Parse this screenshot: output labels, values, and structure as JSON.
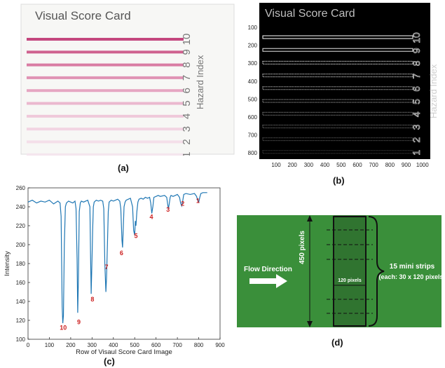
{
  "panel_a": {
    "caption": "(a)",
    "title": "Visual Score Card",
    "side_label": "Hazard Index",
    "indices": [
      "10",
      "9",
      "8",
      "7",
      "6",
      "5",
      "4",
      "3",
      "2",
      "1"
    ],
    "strip_colors": [
      "#c4477e",
      "#cf628f",
      "#d97ca3",
      "#e093b4",
      "#e6a6c2",
      "#ebb8cf",
      "#efc8da",
      "#f2d5e3",
      "#f4dfe9",
      "#f5e6ee"
    ]
  },
  "panel_b": {
    "caption": "(b)",
    "title": "Visual Score Card",
    "side_label": "Hazard Index",
    "indices": [
      "10",
      "9",
      "8",
      "7",
      "6",
      "5",
      "4",
      "3",
      "2",
      "1"
    ],
    "y_ticks": [
      "100",
      "200",
      "300",
      "400",
      "500",
      "600",
      "700",
      "800"
    ],
    "x_ticks": [
      "100",
      "200",
      "300",
      "400",
      "500",
      "600",
      "700",
      "800",
      "900",
      "1000"
    ]
  },
  "panel_c": {
    "caption": "(c)",
    "peak_label_color": "#cc1f1f",
    "line_color": "#1f77b4"
  },
  "panel_d": {
    "caption": "(d)",
    "background_color": "#3a8f3a",
    "flow_label": "Flow Direction",
    "height_label": "450 pixels",
    "width_label": "120 pixels",
    "strips_label_1": "15 mini strips",
    "strips_label_2": "(each: 30 x 120 pixels)"
  },
  "chart_data": {
    "type": "line",
    "xlabel": "Row of Visaul Score Card Image",
    "ylabel": "Intensity",
    "xlim": [
      0,
      900
    ],
    "ylim": [
      100,
      260
    ],
    "x_ticks": [
      0,
      100,
      200,
      300,
      400,
      500,
      600,
      700,
      800,
      900
    ],
    "y_ticks": [
      100,
      120,
      140,
      160,
      180,
      200,
      220,
      240,
      260
    ],
    "series": [
      {
        "x": [
          0,
          20,
          40,
          60,
          80,
          100,
          120,
          140,
          150,
          155,
          160,
          163,
          166,
          170,
          175,
          180,
          190,
          200,
          210,
          220,
          225,
          230,
          233,
          236,
          240,
          245,
          250,
          260,
          270,
          280,
          290,
          293,
          296,
          300,
          303,
          306,
          310,
          320,
          330,
          340,
          350,
          355,
          360,
          365,
          368,
          372,
          376,
          380,
          390,
          400,
          410,
          420,
          430,
          435,
          440,
          443,
          446,
          450,
          455,
          460,
          470,
          480,
          490,
          495,
          500,
          503,
          506,
          510,
          515,
          520,
          530,
          540,
          550,
          560,
          570,
          575,
          580,
          585,
          590,
          600,
          610,
          620,
          640,
          650,
          655,
          658,
          662,
          666,
          670,
          680,
          690,
          700,
          710,
          715,
          720,
          725,
          730,
          740,
          760,
          780,
          790,
          795,
          800,
          805,
          810,
          820,
          840
        ],
        "y": [
          245,
          247,
          244,
          246,
          245,
          247,
          243,
          246,
          244,
          230,
          135,
          117,
          125,
          200,
          240,
          244,
          246,
          245,
          244,
          246,
          238,
          185,
          128,
          160,
          235,
          244,
          246,
          245,
          246,
          247,
          240,
          190,
          148,
          185,
          215,
          240,
          245,
          247,
          246,
          247,
          246,
          238,
          180,
          150,
          165,
          200,
          235,
          245,
          247,
          246,
          247,
          248,
          246,
          238,
          205,
          197,
          215,
          240,
          245,
          247,
          248,
          249,
          240,
          215,
          210,
          225,
          220,
          235,
          245,
          248,
          249,
          248,
          250,
          249,
          250,
          244,
          233,
          240,
          250,
          251,
          252,
          251,
          252,
          250,
          242,
          238,
          243,
          250,
          252,
          251,
          252,
          253,
          250,
          244,
          241,
          246,
          253,
          254,
          253,
          254,
          251,
          247,
          245,
          250,
          254,
          255,
          255
        ]
      }
    ],
    "peak_labels": [
      {
        "text": "10",
        "x": 165,
        "y": 110
      },
      {
        "text": "9",
        "x": 238,
        "y": 116
      },
      {
        "text": "8",
        "x": 302,
        "y": 140
      },
      {
        "text": "7",
        "x": 368,
        "y": 174
      },
      {
        "text": "6",
        "x": 438,
        "y": 189
      },
      {
        "text": "5",
        "x": 506,
        "y": 207
      },
      {
        "text": "4",
        "x": 578,
        "y": 227
      },
      {
        "text": "3",
        "x": 656,
        "y": 235
      },
      {
        "text": "2",
        "x": 725,
        "y": 241
      },
      {
        "text": "1",
        "x": 796,
        "y": 244
      }
    ]
  }
}
